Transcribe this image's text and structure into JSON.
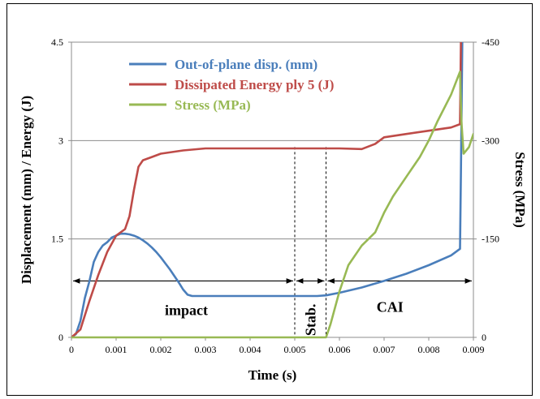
{
  "chart_data": {
    "type": "line",
    "xlabel": "Time (s)",
    "ylabel_left": "Displacement (mm) / Energy (J)",
    "ylabel_right": "Stress (MPa)",
    "xlim": [
      0,
      0.009
    ],
    "ylim_left": [
      0,
      4.5
    ],
    "ylim_right": [
      0,
      -450
    ],
    "x_ticks": [
      "0",
      "0.001",
      "0.002",
      "0.003",
      "0.004",
      "0.005",
      "0.006",
      "0.007",
      "0.008",
      "0.009"
    ],
    "y_left_ticks": [
      "0",
      "1.5",
      "3",
      "4.5"
    ],
    "y_right_ticks": [
      "0",
      "-150",
      "-300",
      "-450"
    ],
    "grid": "horizontal",
    "legend_position": "top-left",
    "series": [
      {
        "name": "Out-of-plane disp. (mm)",
        "color": "#4a7ebb",
        "axis": "left",
        "x": [
          0,
          0.0001,
          0.0002,
          0.0003,
          0.0004,
          0.0005,
          0.0006,
          0.0007,
          0.0008,
          0.0009,
          0.001,
          0.0011,
          0.0012,
          0.0013,
          0.0014,
          0.0015,
          0.0016,
          0.0017,
          0.0018,
          0.0019,
          0.002,
          0.0021,
          0.0022,
          0.0023,
          0.0024,
          0.0025,
          0.0026,
          0.0027,
          0.003,
          0.0035,
          0.004,
          0.0045,
          0.005,
          0.0055,
          0.0057,
          0.006,
          0.0065,
          0.007,
          0.0075,
          0.008,
          0.0085,
          0.0087,
          0.00872,
          0.00875
        ],
        "y": [
          0,
          0.05,
          0.25,
          0.6,
          0.85,
          1.15,
          1.3,
          1.4,
          1.45,
          1.52,
          1.55,
          1.58,
          1.58,
          1.57,
          1.55,
          1.52,
          1.48,
          1.43,
          1.37,
          1.3,
          1.22,
          1.13,
          1.04,
          0.94,
          0.84,
          0.73,
          0.65,
          0.63,
          0.63,
          0.63,
          0.63,
          0.63,
          0.63,
          0.63,
          0.64,
          0.68,
          0.76,
          0.86,
          0.97,
          1.1,
          1.25,
          1.35,
          2.5,
          4.5
        ]
      },
      {
        "name": "Dissipated Energy ply 5 (J)",
        "color": "#be4b48",
        "axis": "left",
        "x": [
          0,
          0.0002,
          0.0004,
          0.0006,
          0.0008,
          0.001,
          0.0012,
          0.0013,
          0.0014,
          0.0015,
          0.0016,
          0.0018,
          0.002,
          0.0025,
          0.003,
          0.0035,
          0.004,
          0.0045,
          0.005,
          0.0055,
          0.006,
          0.0065,
          0.0068,
          0.007,
          0.0075,
          0.008,
          0.0085,
          0.0087,
          0.00872
        ],
        "y": [
          0,
          0.12,
          0.55,
          0.95,
          1.3,
          1.55,
          1.65,
          1.85,
          2.25,
          2.6,
          2.7,
          2.75,
          2.8,
          2.85,
          2.88,
          2.88,
          2.88,
          2.88,
          2.88,
          2.88,
          2.88,
          2.87,
          2.95,
          3.05,
          3.1,
          3.15,
          3.2,
          3.25,
          4.5
        ]
      },
      {
        "name": "Stress (MPa)",
        "color": "#98b954",
        "axis": "right",
        "x": [
          0,
          0.001,
          0.002,
          0.003,
          0.004,
          0.005,
          0.0056,
          0.0057,
          0.0058,
          0.006,
          0.0062,
          0.0065,
          0.0068,
          0.007,
          0.0072,
          0.0075,
          0.0078,
          0.008,
          0.0082,
          0.0085,
          0.0087,
          0.00873,
          0.00878,
          0.0089,
          0.009
        ],
        "y": [
          0,
          0,
          0,
          0,
          0,
          0,
          0,
          0,
          -20,
          -70,
          -110,
          -140,
          -160,
          -190,
          -215,
          -245,
          -275,
          -300,
          -330,
          -370,
          -405,
          -330,
          -280,
          -290,
          -310
        ]
      }
    ],
    "annotations": {
      "phases": [
        {
          "label": "impact",
          "from": 0,
          "to": 0.005
        },
        {
          "label": "Stab.",
          "from": 0.005,
          "to": 0.0057
        },
        {
          "label": "CAI",
          "from": 0.0057,
          "to": 0.009
        }
      ],
      "phase_arrow_y": 0.86,
      "dashed_lines_x": [
        0.005,
        0.0057
      ]
    }
  }
}
